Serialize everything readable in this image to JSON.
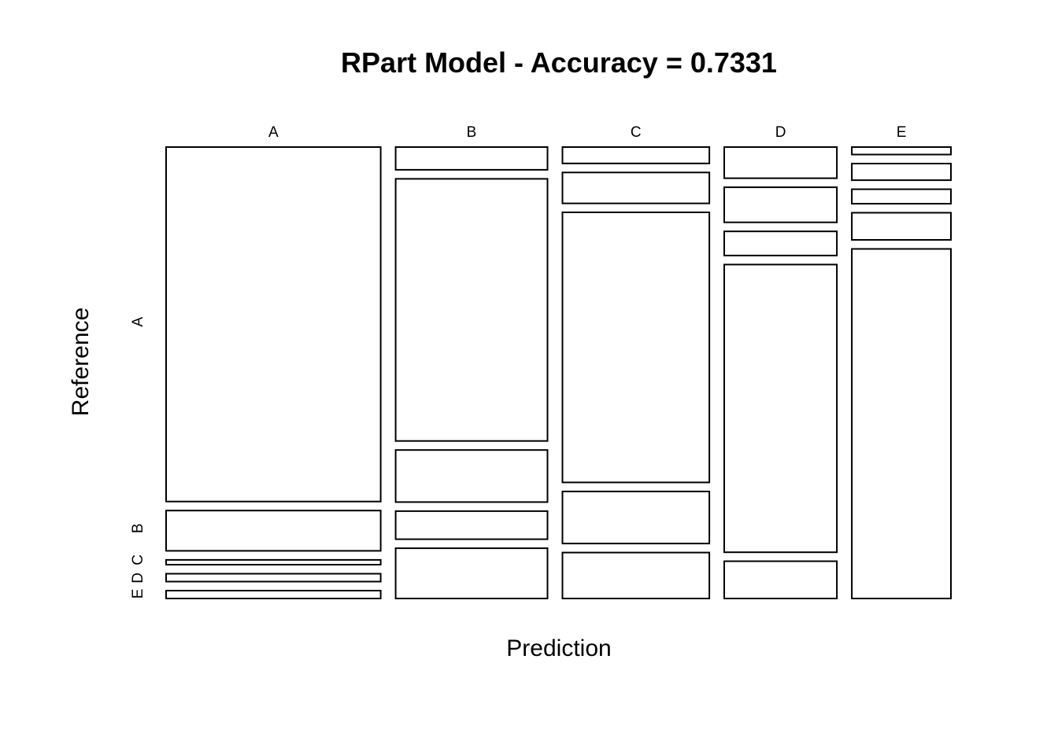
{
  "chart_data": {
    "type": "mosaic",
    "title": "RPart Model - Accuracy =  0.7331",
    "xlabel": "Prediction",
    "ylabel": "Reference",
    "prediction_classes": [
      "A",
      "B",
      "C",
      "D",
      "E"
    ],
    "reference_classes": [
      "A",
      "B",
      "C",
      "D",
      "E"
    ],
    "column_proportions": [
      0.301,
      0.213,
      0.206,
      0.158,
      0.139
    ],
    "cells": [
      {
        "prediction": "A",
        "proportions": {
          "A": 0.81,
          "B": 0.092,
          "C": 0.011,
          "D": 0.018,
          "E": 0.018
        }
      },
      {
        "prediction": "B",
        "proportions": {
          "A": 0.051,
          "B": 0.589,
          "C": 0.117,
          "D": 0.063,
          "E": 0.113
        }
      },
      {
        "prediction": "C",
        "proportions": {
          "A": 0.037,
          "B": 0.07,
          "C": 0.612,
          "D": 0.118,
          "E": 0.104
        }
      },
      {
        "prediction": "D",
        "proportions": {
          "A": 0.071,
          "B": 0.08,
          "C": 0.055,
          "D": 0.656,
          "E": 0.085
        }
      },
      {
        "prediction": "E",
        "proportions": {
          "A": 0.017,
          "B": 0.038,
          "C": 0.033,
          "D": 0.062,
          "E": 0.799
        }
      }
    ]
  }
}
